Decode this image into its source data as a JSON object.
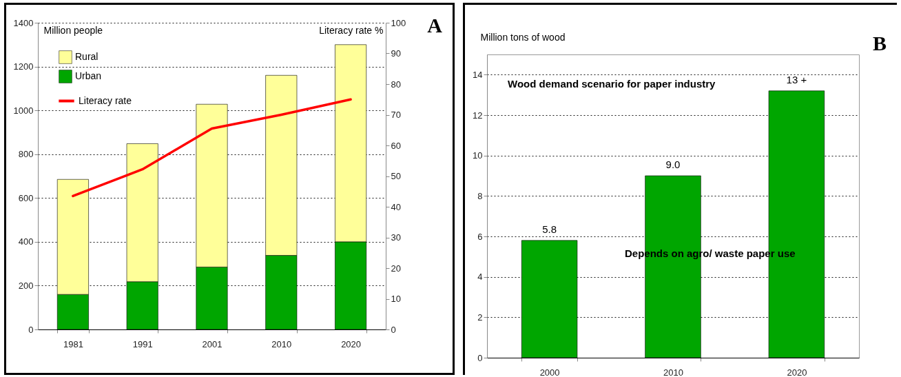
{
  "chart_data": [
    {
      "type": "bar",
      "stacked": true,
      "categories": [
        "1981",
        "1991",
        "2001",
        "2010",
        "2020"
      ],
      "ylabel": "Million people",
      "y2label": "Literacy rate %",
      "ylim": [
        0,
        1400
      ],
      "yticks": [
        0,
        200,
        400,
        600,
        800,
        1000,
        1200,
        1400
      ],
      "y2lim": [
        0,
        100
      ],
      "y2ticks": [
        0,
        10,
        20,
        30,
        40,
        50,
        60,
        70,
        80,
        90,
        100
      ],
      "grid": "y",
      "legend": "top left",
      "annotations": [
        "A"
      ],
      "series": [
        {
          "name": "Urban",
          "color": "#00a600",
          "values": [
            160,
            218,
            285,
            338,
            400
          ]
        },
        {
          "name": "Rural",
          "color": "#ffff99",
          "values": [
            525,
            630,
            743,
            822,
            900
          ]
        },
        {
          "name": "Literacy rate",
          "type": "line",
          "axis": "y2",
          "color": "#ff0000",
          "values": [
            43.5,
            52.2,
            65.5,
            70.0,
            75.0
          ]
        }
      ]
    },
    {
      "type": "bar",
      "categories": [
        "2000",
        "2010",
        "2020"
      ],
      "values": [
        5.8,
        9.0,
        13.2
      ],
      "value_labels": [
        "5.8",
        "9.0",
        "13 +"
      ],
      "color": "#00a600",
      "ylabel": "Million tons of wood",
      "ylim": [
        0,
        15
      ],
      "yticks": [
        0,
        2,
        4,
        6,
        8,
        10,
        12,
        14
      ],
      "grid": "y",
      "annotations": [
        "B",
        "Wood demand scenario for paper industry",
        "Depends on agro/ waste paper use"
      ]
    }
  ]
}
